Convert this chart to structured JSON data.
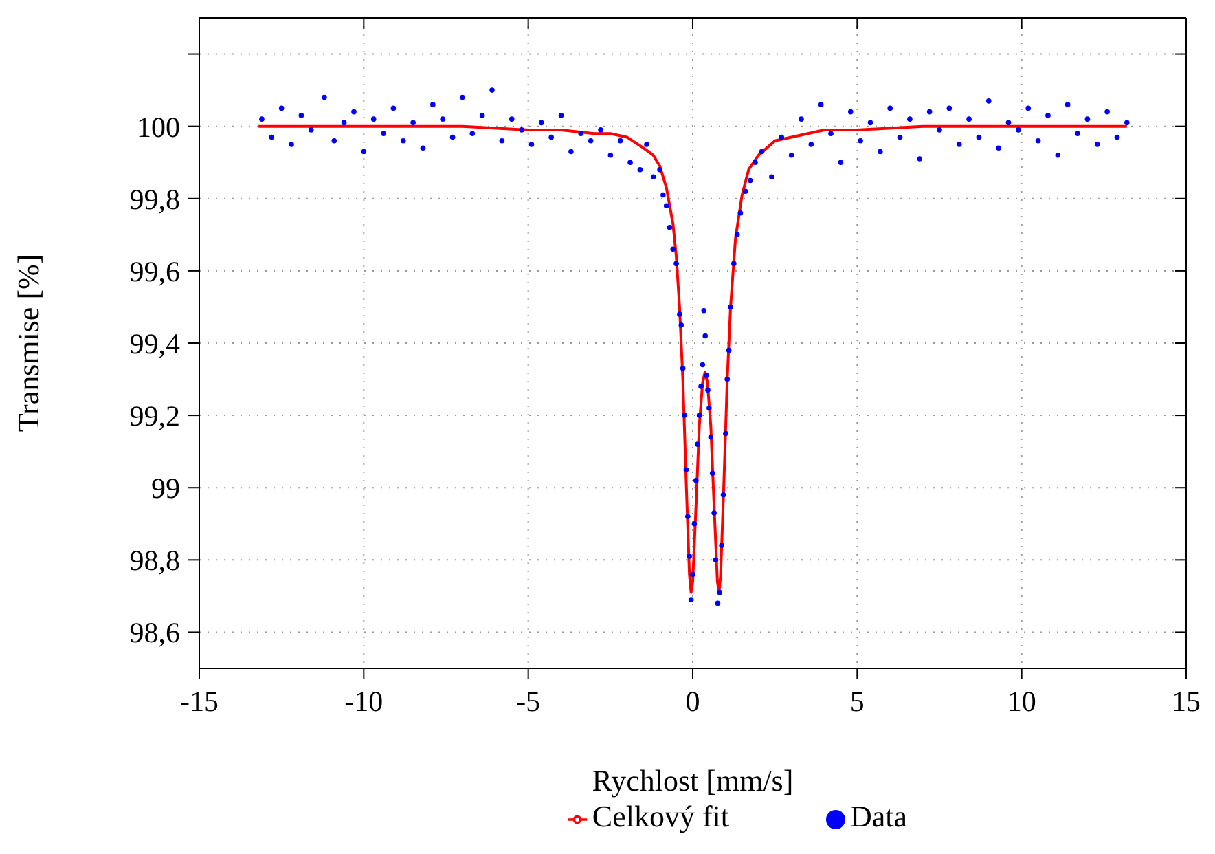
{
  "chart_data": {
    "type": "scatter",
    "xlabel": "Rychlost [mm/s]",
    "ylabel": "Transmise [%]",
    "xlim": [
      -15,
      15
    ],
    "xticks": [
      -15,
      -10,
      -5,
      0,
      5,
      10,
      15
    ],
    "ylim": [
      98.5,
      100.3
    ],
    "yticks": [
      {
        "value": 98.6,
        "label": "98,6"
      },
      {
        "value": 98.8,
        "label": "98,8"
      },
      99,
      {
        "value": 99.2,
        "label": "99,2"
      },
      {
        "value": 99.4,
        "label": "99,4"
      },
      {
        "value": 99.6,
        "label": "99,6"
      },
      {
        "value": 99.8,
        "label": "99,8"
      },
      100,
      {
        "value": 100.2,
        "label": null
      }
    ],
    "grid": true,
    "legend": "bottom",
    "series": [
      {
        "name": "Data",
        "marker": "circle",
        "color": "#0000ff",
        "x": [
          -13.1,
          -12.8,
          -12.5,
          -12.2,
          -11.9,
          -11.6,
          -11.2,
          -10.9,
          -10.6,
          -10.3,
          -10,
          -9.7,
          -9.4,
          -9.1,
          -8.8,
          -8.5,
          -8.2,
          -7.9,
          -7.6,
          -7.3,
          -7,
          -6.7,
          -6.4,
          -6.1,
          -5.8,
          -5.5,
          -5.2,
          -4.9,
          -4.6,
          -4.3,
          -4,
          -3.7,
          -3.4,
          -3.1,
          -2.8,
          -2.5,
          -2.2,
          -1.9,
          -1.6,
          -1.4,
          -1.2,
          -1,
          -0.9,
          -0.8,
          -0.7,
          -0.6,
          -0.5,
          -0.4,
          -0.35,
          -0.3,
          -0.25,
          -0.2,
          -0.15,
          -0.1,
          -0.05,
          0,
          0.05,
          0.1,
          0.15,
          0.2,
          0.25,
          0.3,
          0.34,
          0.38,
          0.42,
          0.46,
          0.5,
          0.55,
          0.6,
          0.65,
          0.7,
          0.76,
          0.82,
          0.88,
          0.93,
          1,
          1.05,
          1.1,
          1.15,
          1.25,
          1.35,
          1.45,
          1.6,
          1.75,
          1.9,
          2.1,
          2.4,
          2.7,
          3,
          3.3,
          3.6,
          3.9,
          4.2,
          4.5,
          4.8,
          5.1,
          5.4,
          5.7,
          6,
          6.3,
          6.6,
          6.9,
          7.2,
          7.5,
          7.8,
          8.1,
          8.4,
          8.7,
          9,
          9.3,
          9.6,
          9.9,
          10.2,
          10.5,
          10.8,
          11.1,
          11.4,
          11.7,
          12,
          12.3,
          12.6,
          12.9,
          13.2
        ],
        "values": [
          100.02,
          99.97,
          100.05,
          99.95,
          100.03,
          99.99,
          100.08,
          99.96,
          100.01,
          100.04,
          99.93,
          100.02,
          99.98,
          100.05,
          99.96,
          100.01,
          99.94,
          100.06,
          100.02,
          99.97,
          100.08,
          99.98,
          100.03,
          100.1,
          99.96,
          100.02,
          99.99,
          99.95,
          100.01,
          99.97,
          100.03,
          99.93,
          99.98,
          99.96,
          99.99,
          99.92,
          99.96,
          99.9,
          99.88,
          99.95,
          99.86,
          99.88,
          99.81,
          99.78,
          99.72,
          99.66,
          99.62,
          99.48,
          99.45,
          99.33,
          99.2,
          99.05,
          98.92,
          98.81,
          98.69,
          98.76,
          98.9,
          99.02,
          99.12,
          99.2,
          99.28,
          99.34,
          99.49,
          99.42,
          99.31,
          99.27,
          99.22,
          99.14,
          99.04,
          98.93,
          98.8,
          98.68,
          98.71,
          98.84,
          98.98,
          99.15,
          99.3,
          99.38,
          99.5,
          99.62,
          99.7,
          99.76,
          99.82,
          99.85,
          99.9,
          99.93,
          99.86,
          99.97,
          99.92,
          100.02,
          99.95,
          100.06,
          99.98,
          99.9,
          100.04,
          99.96,
          100.01,
          99.93,
          100.05,
          99.97,
          100.02,
          99.91,
          100.04,
          99.99,
          100.05,
          99.95,
          100.02,
          99.97,
          100.07,
          99.94,
          100.01,
          99.99,
          100.05,
          99.96,
          100.03,
          99.92,
          100.06,
          99.98,
          100.02,
          99.95,
          100.04,
          99.97,
          100.01
        ]
      },
      {
        "name": "Celkový fit",
        "type": "line",
        "marker": "none",
        "line_style": "solid",
        "color": "#ff0000",
        "x": [
          -13.2,
          -10,
          -7,
          -5,
          -4,
          -3,
          -2.5,
          -2,
          -1.5,
          -1.2,
          -1,
          -0.8,
          -0.6,
          -0.5,
          -0.4,
          -0.3,
          -0.2,
          -0.1,
          -0.05,
          0,
          0.1,
          0.2,
          0.3,
          0.375,
          0.45,
          0.55,
          0.65,
          0.75,
          0.8,
          0.85,
          0.95,
          1.05,
          1.15,
          1.3,
          1.5,
          1.7,
          2,
          2.5,
          3,
          4,
          5,
          7,
          10,
          13.2
        ],
        "values": [
          100.0,
          100.0,
          100.0,
          99.99,
          99.99,
          99.98,
          99.98,
          99.97,
          99.94,
          99.92,
          99.89,
          99.83,
          99.73,
          99.64,
          99.5,
          99.3,
          99.02,
          98.76,
          98.71,
          98.74,
          98.95,
          99.17,
          99.29,
          99.32,
          99.29,
          99.17,
          98.95,
          98.74,
          98.71,
          98.76,
          99.02,
          99.3,
          99.5,
          99.69,
          99.81,
          99.88,
          99.92,
          99.96,
          99.97,
          99.99,
          99.99,
          100.0,
          100.0,
          100.0
        ]
      }
    ]
  }
}
